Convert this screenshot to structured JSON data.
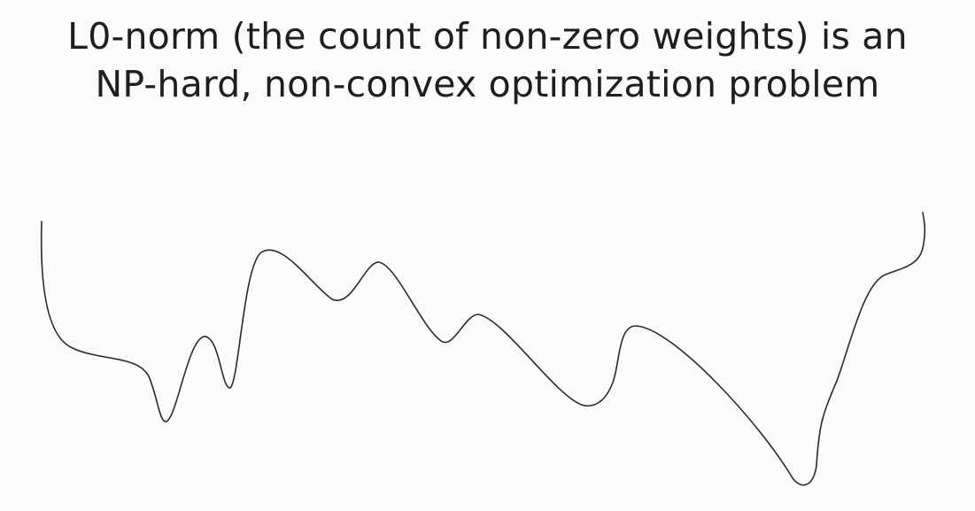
{
  "slide": {
    "title_line_1": "L0-norm (the count of non-zero weights) is an",
    "title_line_2": "NP-hard, non-convex optimization problem"
  },
  "colors": {
    "background": "#fbfbfb",
    "text": "#1e1e1e",
    "curve": "#2a2a2a"
  },
  "icons": [
    "loss-landscape-curve-icon"
  ]
}
